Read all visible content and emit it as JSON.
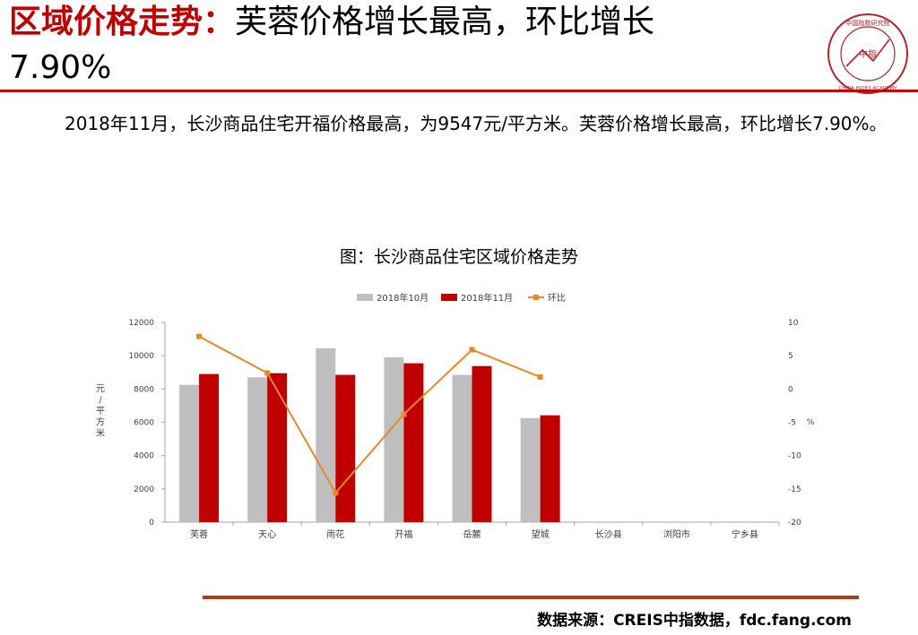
{
  "header": {
    "title_highlight": "区域价格走势：",
    "title_rest": "芙蓉价格增长最高，环比增长",
    "title_line2": "7.90%",
    "logo_text": "中指",
    "logo_ring_text": "CHINA INDEX ACADEMY",
    "logo_top_text": "中国指数研究院"
  },
  "body": {
    "paragraph": "2018年11月，长沙商品住宅开福价格最高，为9547元/平方米。芙蓉价格增长最高，环比增长7.90%。"
  },
  "chart_data": {
    "type": "bar",
    "title": "图：长沙商品住宅区域价格走势",
    "categories": [
      "芙蓉",
      "天心",
      "雨花",
      "开福",
      "岳麓",
      "望城",
      "长沙县",
      "浏阳市",
      "宁乡县"
    ],
    "series": [
      {
        "name": "2018年10月",
        "type": "bar",
        "axis": "left",
        "color": "#bfbfbf",
        "values": [
          8250,
          8700,
          10450,
          9900,
          8850,
          6250,
          null,
          null,
          null
        ]
      },
      {
        "name": "2018年11月",
        "type": "bar",
        "axis": "left",
        "color": "#c00000",
        "values": [
          8900,
          8950,
          8850,
          9547,
          9380,
          6420,
          null,
          null,
          null
        ]
      },
      {
        "name": "环比",
        "type": "line",
        "axis": "right",
        "color": "#e68a28",
        "values": [
          7.9,
          2.4,
          -15.6,
          -3.8,
          5.9,
          1.8,
          null,
          null,
          null
        ]
      }
    ],
    "ylabel": "元/平方米",
    "y2label": "%",
    "ylim": [
      0,
      12000
    ],
    "yticks": [
      0,
      2000,
      4000,
      6000,
      8000,
      10000,
      12000
    ],
    "y2lim": [
      -20,
      10
    ],
    "y2ticks": [
      -20,
      -15,
      -10,
      -5,
      0,
      5,
      10
    ],
    "legend_position": "top",
    "grid": false
  },
  "footer": {
    "source": "数据来源：CREIS中指数据，fdc.fang.com"
  }
}
